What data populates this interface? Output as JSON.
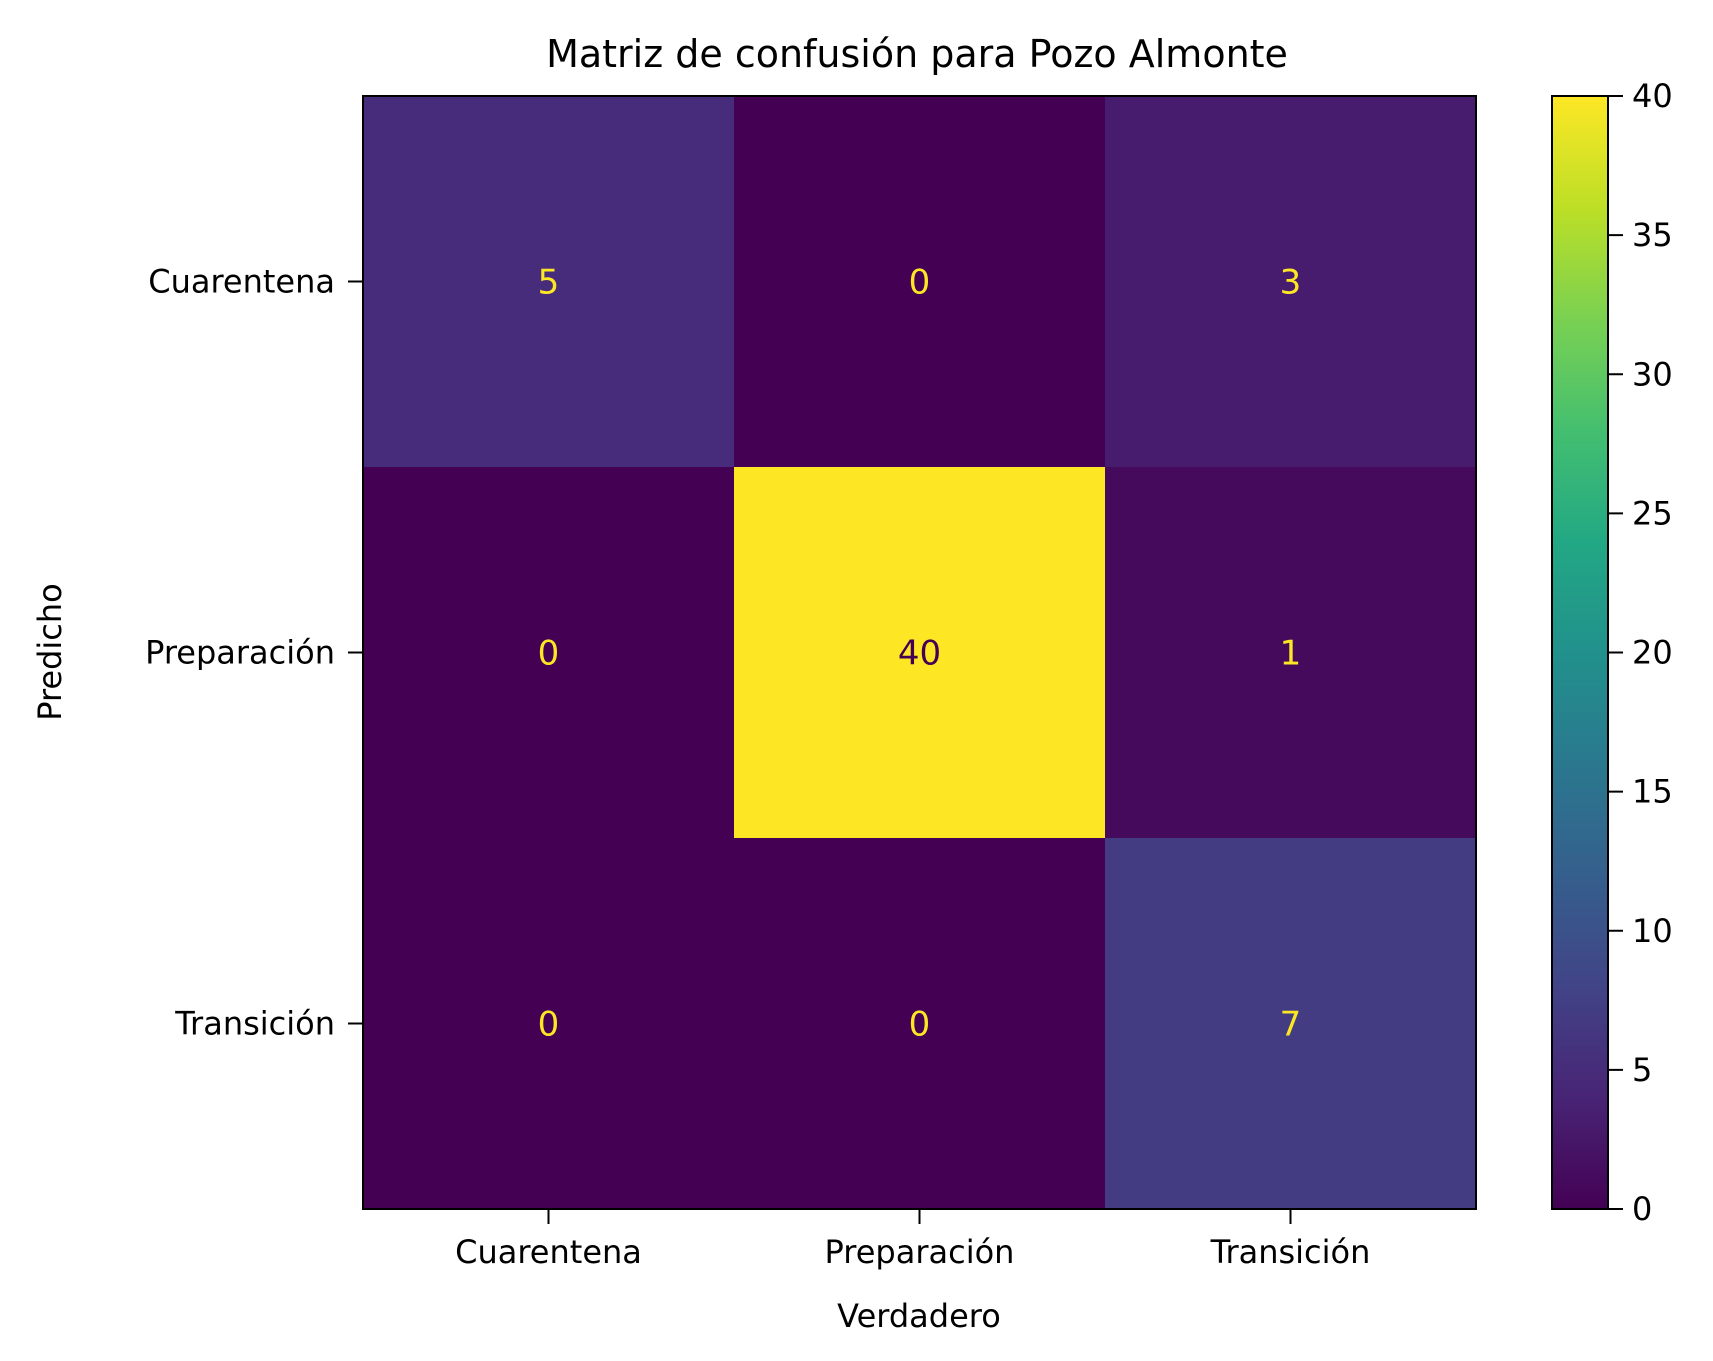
{
  "chart_data": {
    "type": "heatmap",
    "title": "Matriz de confusión para Pozo Almonte",
    "xlabel": "Verdadero",
    "ylabel": "Predicho",
    "x_categories": [
      "Cuarentena",
      "Preparación",
      "Transición"
    ],
    "y_categories": [
      "Cuarentena",
      "Preparación",
      "Transición"
    ],
    "matrix": [
      [
        5,
        0,
        3
      ],
      [
        0,
        40,
        1
      ],
      [
        0,
        0,
        7
      ]
    ],
    "colormap": "viridis",
    "colorbar": {
      "min": 0,
      "max": 40,
      "ticks": [
        0,
        5,
        10,
        15,
        20,
        25,
        30,
        35,
        40
      ],
      "tick_labels": [
        "0",
        "5",
        "10",
        "15",
        "20",
        "25",
        "30",
        "35",
        "40"
      ]
    },
    "colors": {
      "low": "#440154",
      "high": "#fde725",
      "text_on_dark": "#fde725",
      "text_on_light": "#440154"
    }
  }
}
